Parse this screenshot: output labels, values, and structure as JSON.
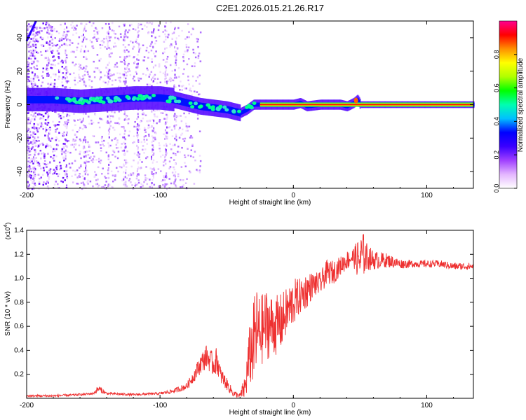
{
  "title": "C2E1.2026.015.21.26.R17",
  "chart_data": [
    {
      "type": "heatmap",
      "title": "C2E1.2026.015.21.26.R17",
      "xlabel": "Height of straight line (km)",
      "ylabel": "Frequency (Hz)",
      "xlim": [
        -200,
        135
      ],
      "ylim": [
        -50,
        50
      ],
      "x_ticks": [
        -200,
        -100,
        0,
        100
      ],
      "y_ticks": [
        -40,
        -20,
        0,
        20,
        40
      ],
      "colorbar": {
        "label": "Normalized spectral amplitude",
        "range": [
          0,
          1
        ],
        "ticks": [
          "0.0",
          "0.2",
          "0.4",
          "0.6",
          "0.8"
        ],
        "colormap": [
          "#ffffff",
          "#e4b6ff",
          "#a040ff",
          "#3a00ff",
          "#0000ff",
          "#00c0ff",
          "#00ffb0",
          "#00ff00",
          "#b0ff00",
          "#ffff00",
          "#ff9000",
          "#ff0000",
          "#ff0090"
        ]
      },
      "ridge": {
        "description": "strong spectral line near 0 Hz",
        "x": [
          -200,
          -180,
          -160,
          -140,
          -120,
          -100,
          -90,
          -80,
          -70,
          -60,
          -50,
          -40,
          -35,
          -30,
          -20,
          -10,
          0,
          5,
          10,
          20,
          30,
          35,
          40,
          45,
          48,
          50,
          60,
          80,
          100,
          135
        ],
        "freq": [
          3,
          3,
          2,
          3,
          4,
          4,
          3,
          1,
          -1,
          -2,
          -3,
          -5,
          -3,
          0,
          0,
          0,
          0,
          1,
          -1,
          0,
          0,
          0,
          -1,
          1,
          3,
          0,
          0,
          0,
          0,
          0
        ]
      }
    },
    {
      "type": "line",
      "xlabel": "Height of straight line (km)",
      "ylabel": "SNR (10 * v/v)",
      "multiplier_label": "(x10",
      "multiplier_exp": "4",
      "multiplier_close": ")",
      "xlim": [
        -200,
        135
      ],
      "ylim": [
        0,
        1.4
      ],
      "x_ticks": [
        -200,
        -100,
        0,
        100
      ],
      "y_ticks": [
        "0.2",
        "0.4",
        "0.6",
        "0.8",
        "1.0",
        "1.2",
        "1.4"
      ],
      "color": "#ee3030",
      "series": [
        {
          "name": "SNR",
          "x": [
            -200,
            -180,
            -160,
            -150,
            -146,
            -140,
            -120,
            -100,
            -90,
            -80,
            -75,
            -70,
            -65,
            -60,
            -57,
            -55,
            -50,
            -45,
            -40,
            -36,
            -33,
            -30,
            -28,
            -25,
            -20,
            -15,
            -10,
            -5,
            0,
            5,
            10,
            15,
            20,
            25,
            30,
            35,
            40,
            45,
            50,
            52,
            55,
            60,
            70,
            80,
            90,
            100,
            110,
            120,
            135
          ],
          "values": [
            0.02,
            0.02,
            0.03,
            0.04,
            0.08,
            0.04,
            0.03,
            0.04,
            0.06,
            0.1,
            0.18,
            0.28,
            0.35,
            0.28,
            0.32,
            0.2,
            0.12,
            0.04,
            0.02,
            0.1,
            0.35,
            0.45,
            0.55,
            0.55,
            0.62,
            0.6,
            0.62,
            0.72,
            0.8,
            0.85,
            0.9,
            0.95,
            0.95,
            1.05,
            1.05,
            1.1,
            1.15,
            1.18,
            1.15,
            1.2,
            1.18,
            1.15,
            1.15,
            1.12,
            1.12,
            1.12,
            1.12,
            1.1,
            1.1
          ],
          "noise": [
            0.01,
            0.01,
            0.01,
            0.01,
            0.03,
            0.01,
            0.01,
            0.01,
            0.02,
            0.03,
            0.05,
            0.08,
            0.1,
            0.1,
            0.12,
            0.08,
            0.05,
            0.03,
            0.02,
            0.12,
            0.25,
            0.35,
            0.4,
            0.3,
            0.3,
            0.25,
            0.25,
            0.2,
            0.2,
            0.15,
            0.15,
            0.1,
            0.1,
            0.1,
            0.1,
            0.08,
            0.08,
            0.08,
            0.2,
            0.2,
            0.12,
            0.08,
            0.06,
            0.04,
            0.03,
            0.03,
            0.03,
            0.03,
            0.03
          ]
        }
      ]
    }
  ]
}
